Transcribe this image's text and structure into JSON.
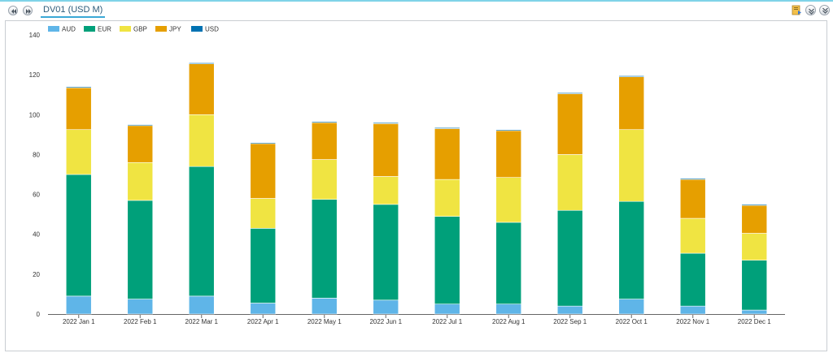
{
  "panel": {
    "title": "DV01 (USD M)",
    "icons": {
      "first": "rewind-icon",
      "prev": "fast-forward-icon",
      "export": "export-icon",
      "collapse": "collapse-icon",
      "expand": "expand-icon"
    }
  },
  "chart_data": {
    "type": "bar",
    "stacked": true,
    "categories": [
      "2022 Jan 1",
      "2022 Feb 1",
      "2022 Mar 1",
      "2022 Apr 1",
      "2022 May 1",
      "2022 Jun 1",
      "2022 Jul 1",
      "2022 Aug 1",
      "2022 Sep 1",
      "2022 Oct 1",
      "2022 Nov 1",
      "2022 Dec 1"
    ],
    "series": [
      {
        "name": "AUD",
        "color": "#5fb5e8",
        "values": [
          9,
          7.5,
          9,
          5.5,
          8,
          7,
          5,
          5,
          4,
          7.5,
          4,
          2
        ]
      },
      {
        "name": "EUR",
        "color": "#00a07a",
        "values": [
          61,
          49.5,
          65,
          37.5,
          49.5,
          48,
          44,
          41,
          48,
          49,
          26.5,
          25
        ]
      },
      {
        "name": "GBP",
        "color": "#f0e442",
        "values": [
          22.5,
          19,
          26,
          15,
          20,
          14,
          18.5,
          22.5,
          28,
          36,
          17.5,
          13.5
        ]
      },
      {
        "name": "JPY",
        "color": "#e69f00",
        "values": [
          21,
          18.5,
          25.5,
          27.5,
          18.5,
          26.5,
          25.5,
          23.5,
          30.5,
          26.5,
          19.5,
          14
        ]
      },
      {
        "name": "USD",
        "color": "#0072b2",
        "values": [
          0.5,
          0.5,
          0.5,
          0.5,
          0.5,
          0.5,
          0.5,
          0.5,
          0.5,
          0.5,
          0.5,
          0.5
        ]
      }
    ],
    "ylim": [
      0,
      140
    ],
    "yticks": [
      "0",
      "20",
      "40",
      "60",
      "80",
      "100",
      "120",
      "140"
    ],
    "legend_position": "top-left",
    "grid": false
  }
}
